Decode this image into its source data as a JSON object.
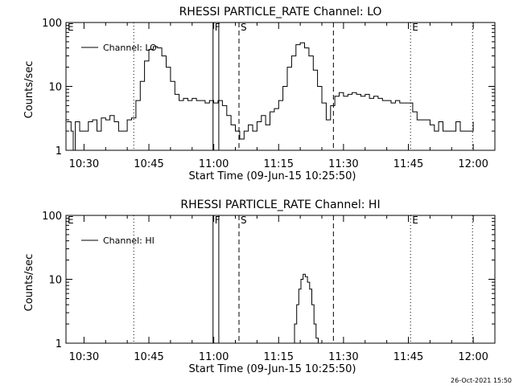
{
  "footer": {
    "timestamp": "26-Oct-2021 15:50"
  },
  "chart_data": [
    {
      "type": "line",
      "title": "RHESSI PARTICLE_RATE Channel: LO",
      "xlabel": "Start Time (09-Jun-15 10:25:50)",
      "ylabel": "Counts/sec",
      "yscale": "log",
      "ylim": [
        1,
        100
      ],
      "xlim_minutes": [
        10.25,
        11.1
      ],
      "x_ticks": [
        "10:30",
        "10:45",
        "11:00",
        "11:15",
        "11:30",
        "11:45",
        "12:00"
      ],
      "y_ticks": [
        "1",
        "10",
        "100"
      ],
      "legend": {
        "label": "Channel: LO",
        "position": "top-left"
      },
      "markers": [
        {
          "label": "E",
          "time": "10:25:50",
          "style": "none"
        },
        {
          "label": "",
          "time": "10:41:30",
          "style": "dotted"
        },
        {
          "label": "F",
          "time": "10:59:50",
          "style": "solid"
        },
        {
          "label": "",
          "time": "11:01:10",
          "style": "solid"
        },
        {
          "label": "S",
          "time": "11:05:50",
          "style": "dashed"
        },
        {
          "label": "",
          "time": "11:27:40",
          "style": "dashed"
        },
        {
          "label": "E",
          "time": "11:45:30",
          "style": "dotted"
        },
        {
          "label": "",
          "time": "11:59:50",
          "style": "dotted"
        }
      ],
      "series": [
        {
          "x": [
            "10:26",
            "10:27",
            "10:27:30",
            "10:28",
            "10:29",
            "10:30",
            "10:31",
            "10:32",
            "10:33",
            "10:34",
            "10:35",
            "10:36",
            "10:37",
            "10:38",
            "10:39",
            "10:40",
            "10:41",
            "10:42",
            "10:43",
            "10:44",
            "10:45",
            "10:46",
            "10:47",
            "10:48",
            "10:49",
            "10:50",
            "10:51",
            "10:52",
            "10:53",
            "10:54",
            "10:55",
            "10:56",
            "10:57",
            "10:58",
            "10:59",
            "11:00",
            "11:01",
            "11:02",
            "11:03",
            "11:04",
            "11:05",
            "11:06",
            "11:07",
            "11:08",
            "11:09",
            "11:10",
            "11:11",
            "11:12",
            "11:13",
            "11:14",
            "11:15",
            "11:16",
            "11:17",
            "11:18",
            "11:19",
            "11:20",
            "11:21",
            "11:22",
            "11:23",
            "11:24",
            "11:25",
            "11:26",
            "11:27",
            "11:28",
            "11:29",
            "11:30",
            "11:31",
            "11:32",
            "11:33",
            "11:34",
            "11:35",
            "11:36",
            "11:37",
            "11:38",
            "11:39",
            "11:40",
            "11:41",
            "11:42",
            "11:43",
            "11:44",
            "11:45",
            "11:46",
            "11:47",
            "11:48",
            "11:49",
            "11:50",
            "11:51",
            "11:52",
            "11:53",
            "11:54",
            "11:55",
            "11:56",
            "11:57",
            "11:58",
            "11:59",
            "12:00"
          ],
          "y": [
            2.8,
            2.0,
            1.0,
            2.8,
            2.0,
            2.0,
            2.8,
            3.0,
            2.0,
            3.2,
            3.0,
            3.5,
            2.8,
            2.0,
            2.0,
            3.0,
            3.2,
            6.0,
            12,
            25,
            38,
            42,
            40,
            30,
            20,
            12,
            7.5,
            6.0,
            6.5,
            6.0,
            6.5,
            6.0,
            6.0,
            5.5,
            6.0,
            5.5,
            6.0,
            5.0,
            3.5,
            2.5,
            2.0,
            1.5,
            2.0,
            2.5,
            2.0,
            2.8,
            3.5,
            2.5,
            4.0,
            4.5,
            6.0,
            10,
            20,
            30,
            45,
            48,
            40,
            30,
            18,
            10,
            5.5,
            3.0,
            5.0,
            7.0,
            8.0,
            7.0,
            7.5,
            8.0,
            7.5,
            7.0,
            7.5,
            6.5,
            7.0,
            6.5,
            6.0,
            6.0,
            5.5,
            6.0,
            5.5,
            5.5,
            5.5,
            4.0,
            3.0,
            3.0,
            3.0,
            2.5,
            2.0,
            2.8,
            2.0,
            2.0,
            2.0,
            2.8,
            2.0,
            2.0,
            2.0,
            2.8
          ]
        }
      ]
    },
    {
      "type": "line",
      "title": "RHESSI PARTICLE_RATE Channel: HI",
      "xlabel": "Start Time (09-Jun-15 10:25:50)",
      "ylabel": "Counts/sec",
      "yscale": "log",
      "ylim": [
        1,
        100
      ],
      "x_ticks": [
        "10:30",
        "10:45",
        "11:00",
        "11:15",
        "11:30",
        "11:45",
        "12:00"
      ],
      "y_ticks": [
        "1",
        "10",
        "100"
      ],
      "legend": {
        "label": "Channel: HI",
        "position": "top-left"
      },
      "markers": [
        {
          "label": "E",
          "time": "10:25:50",
          "style": "none"
        },
        {
          "label": "",
          "time": "10:41:30",
          "style": "dotted"
        },
        {
          "label": "F",
          "time": "10:59:50",
          "style": "solid"
        },
        {
          "label": "",
          "time": "11:01:10",
          "style": "solid"
        },
        {
          "label": "S",
          "time": "11:05:50",
          "style": "dashed"
        },
        {
          "label": "",
          "time": "11:27:40",
          "style": "dashed"
        },
        {
          "label": "E",
          "time": "11:45:30",
          "style": "dotted"
        },
        {
          "label": "",
          "time": "11:59:50",
          "style": "dotted"
        }
      ],
      "series": [
        {
          "x": [
            "11:18:10",
            "11:18:40",
            "11:19:10",
            "11:19:40",
            "11:20:10",
            "11:20:40",
            "11:21:10",
            "11:21:40",
            "11:22:10",
            "11:22:40",
            "11:23:10",
            "11:23:40",
            "11:24:10"
          ],
          "y": [
            1.0,
            2.0,
            4.0,
            7.0,
            10,
            12,
            11,
            9.0,
            7.0,
            4.0,
            2.0,
            1.2,
            1.0
          ]
        }
      ]
    }
  ]
}
